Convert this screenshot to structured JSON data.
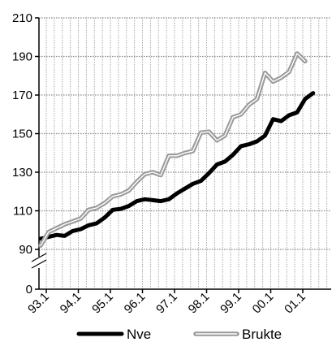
{
  "chart_data": {
    "type": "line",
    "title": "",
    "xlabel": "",
    "ylabel": "",
    "y_ticks": [
      0,
      90,
      110,
      130,
      150,
      170,
      190,
      210
    ],
    "y_axis_break": "between 0 and 90",
    "ylim": [
      0,
      210
    ],
    "x_tick_labels": [
      "93.1",
      "94.1",
      "95.1",
      "96.1",
      "97.1",
      "98.1",
      "99.1",
      "00.1",
      "01.1"
    ],
    "grid": true,
    "legend_position": "bottom",
    "series": [
      {
        "name": "Nve",
        "style": "thick-black",
        "color": "#000000",
        "values": [
          95.5,
          96.5,
          97.5,
          97,
          99.5,
          100.5,
          102.5,
          103.5,
          106.5,
          110.5,
          111,
          112.5,
          115,
          116,
          115.5,
          115,
          116,
          119,
          121.5,
          124,
          125.5,
          129.5,
          134,
          135.5,
          139,
          143.5,
          144.5,
          146,
          149,
          157.5,
          156.5,
          159.5,
          161,
          168,
          171
        ]
      },
      {
        "name": "Brukte",
        "style": "gray-double",
        "color": "#9a9a9a",
        "values": [
          92,
          99,
          101,
          103,
          104.5,
          106,
          110.5,
          111.5,
          114,
          117.5,
          118.5,
          120.5,
          125,
          129,
          130,
          128.5,
          138.5,
          138.5,
          140,
          141,
          150.5,
          151,
          146.5,
          149,
          158.5,
          160,
          165,
          168,
          181.5,
          177,
          179,
          182,
          191.5,
          187.5
        ]
      }
    ]
  }
}
